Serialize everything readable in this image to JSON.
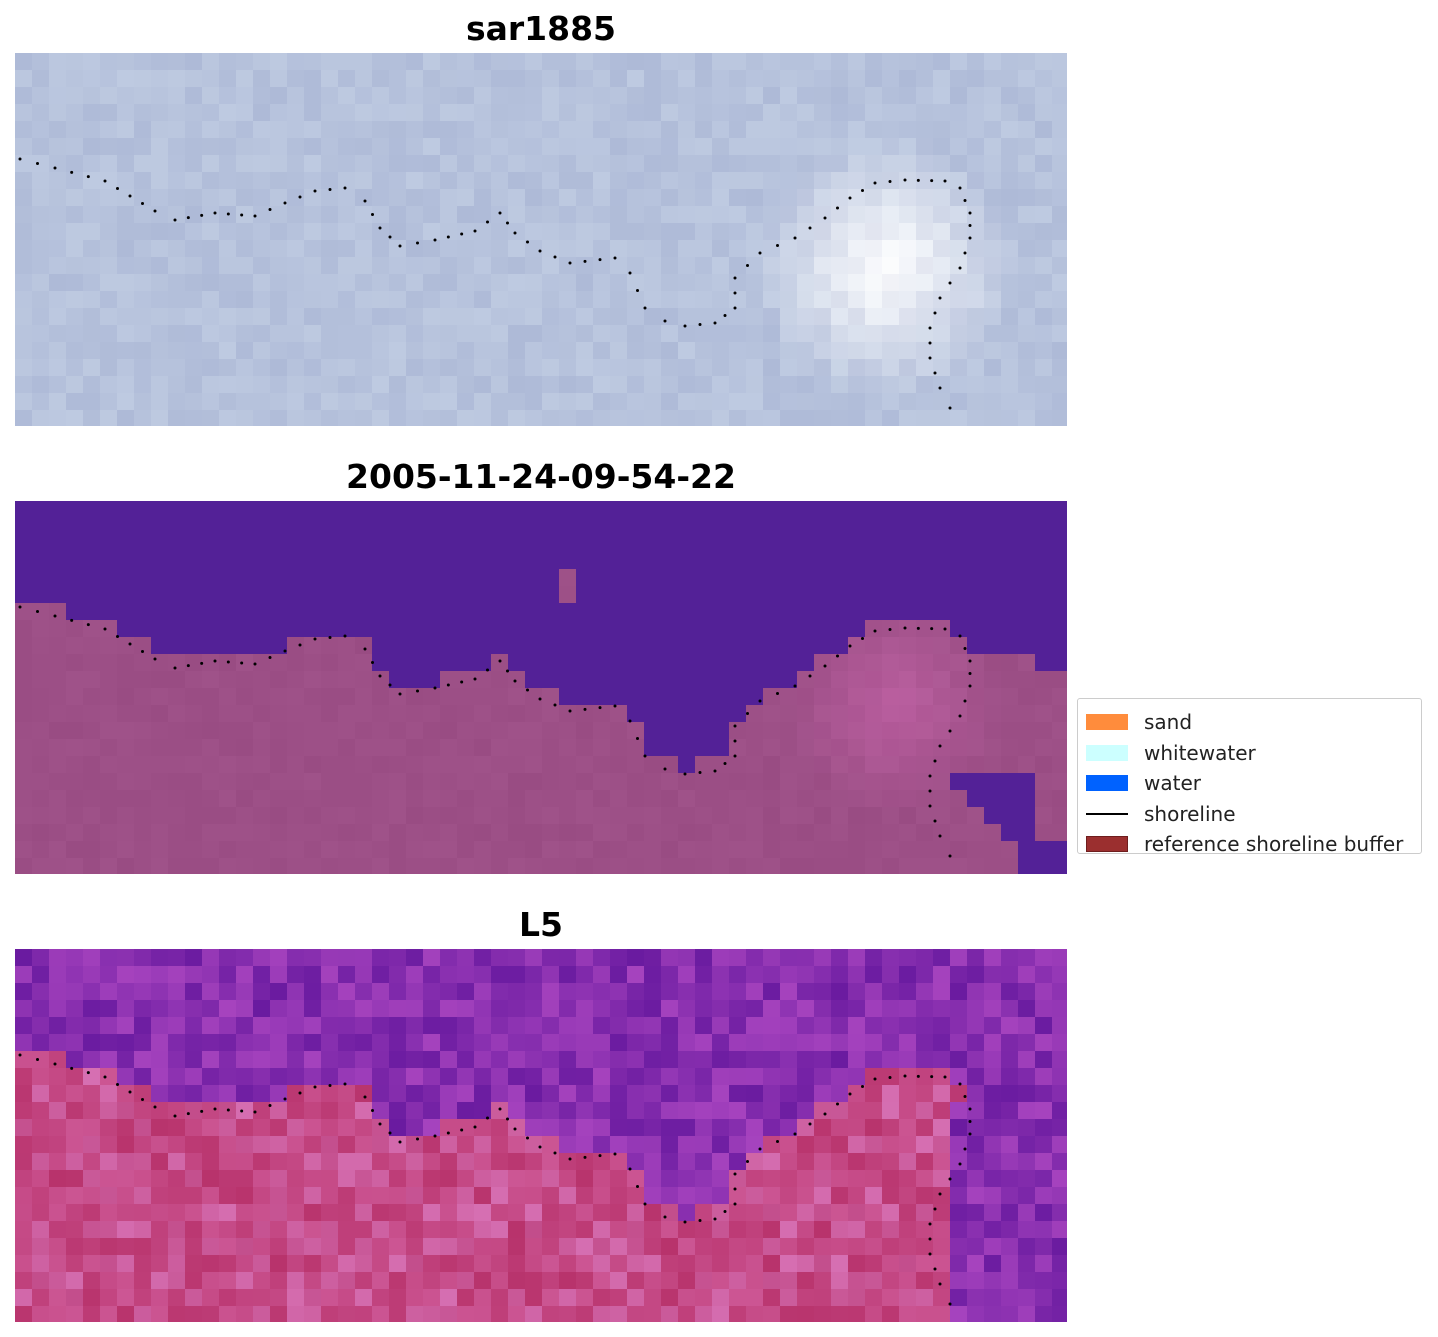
{
  "panels": [
    {
      "title": "sar1885",
      "kind": "sar"
    },
    {
      "title": "2005-11-24-09-54-22",
      "kind": "classification"
    },
    {
      "title": "L5",
      "kind": "index"
    }
  ],
  "legend": {
    "items": [
      {
        "label": "sand",
        "color": "#ff8c3c",
        "type": "patch"
      },
      {
        "label": "whitewater",
        "color": "#ccffff",
        "type": "patch"
      },
      {
        "label": "water",
        "color": "#0062ff",
        "type": "patch"
      },
      {
        "label": "shoreline",
        "color": "#000000",
        "type": "line"
      },
      {
        "label": "reference shoreline buffer",
        "color": "#9b2f2f",
        "type": "patch"
      }
    ]
  },
  "colors": {
    "sar_base": "#b6c2dc",
    "classification_water": "#532197",
    "classification_land": "#9c4f86",
    "index_water": "#6a1ba0",
    "index_land": "#c2336c",
    "shoreline": "#000000"
  }
}
